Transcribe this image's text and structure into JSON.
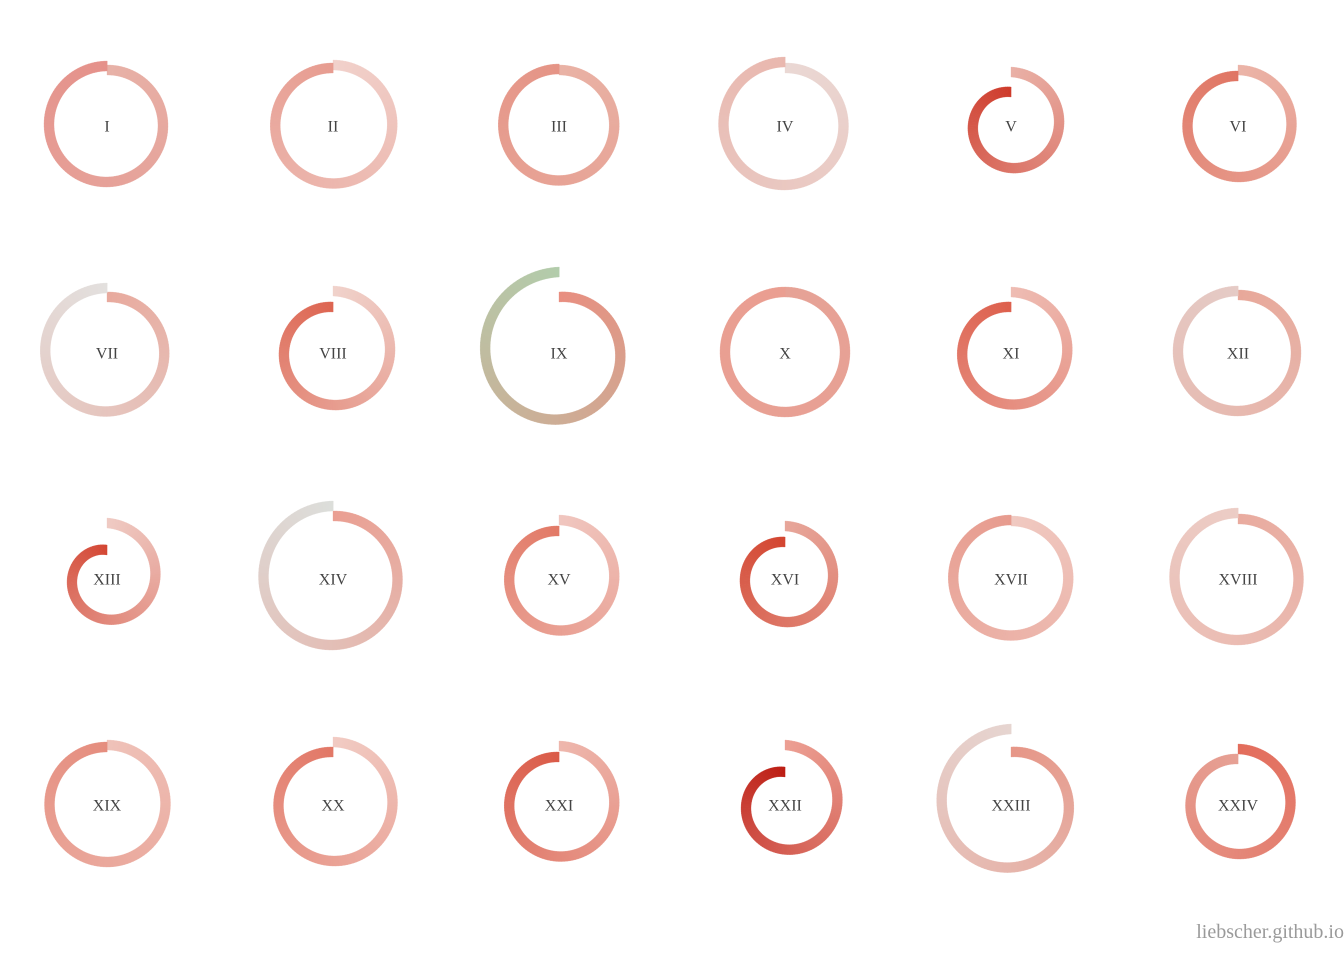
{
  "credit": "liebscher.github.io",
  "colors": {
    "label": "#444444",
    "credit": "#9a9a9a",
    "background": "#ffffff"
  },
  "chart_data": {
    "type": "radial-spiral",
    "grid": {
      "rows": 4,
      "columns": 6
    },
    "title": "",
    "cells": [
      {
        "label": "I",
        "start_radius": 55,
        "end_radius": 59,
        "start_color": "#e7b1a7",
        "end_color": "#e5918a"
      },
      {
        "label": "II",
        "start_radius": 60,
        "end_radius": 57,
        "start_color": "#f1d1cb",
        "end_color": "#e79c90"
      },
      {
        "label": "III",
        "start_radius": 55,
        "end_radius": 56,
        "start_color": "#e9b2a5",
        "end_color": "#e59486"
      },
      {
        "label": "IV",
        "start_radius": 57,
        "end_radius": 63,
        "start_color": "#ead8d4",
        "end_color": "#e9b7ae"
      },
      {
        "label": "V",
        "start_radius": 53,
        "end_radius": 33,
        "start_color": "#e9b0a6",
        "end_color": "#ce3a2a"
      },
      {
        "label": "VI",
        "start_radius": 55,
        "end_radius": 49,
        "start_color": "#ebb4a8",
        "end_color": "#e07563"
      },
      {
        "label": "VII",
        "start_radius": 55,
        "end_radius": 64,
        "start_color": "#e8aa9e",
        "end_color": "#e3e0de"
      },
      {
        "label": "VIII",
        "start_radius": 61,
        "end_radius": 45,
        "start_color": "#f0d2cb",
        "end_color": "#dd6450"
      },
      {
        "label": "IX",
        "start_radius": 55,
        "end_radius": 80,
        "start_color": "#e88e80",
        "end_color": "#b2ccab"
      },
      {
        "label": "X",
        "start_radius": 60,
        "end_radius": 60,
        "start_color": "#e6a296",
        "end_color": "#ea9e91"
      },
      {
        "label": "XI",
        "start_radius": 60,
        "end_radius": 45,
        "start_color": "#eebcb3",
        "end_color": "#dd5f4c"
      },
      {
        "label": "XII",
        "start_radius": 57,
        "end_radius": 61,
        "start_color": "#e8a89a",
        "end_color": "#e5cbc6"
      },
      {
        "label": "XIII",
        "start_radius": 55,
        "end_radius": 28,
        "start_color": "#efcac3",
        "end_color": "#d34532"
      },
      {
        "label": "XIV",
        "start_radius": 62,
        "end_radius": 72,
        "start_color": "#ea9f92",
        "end_color": "#dcdedb"
      },
      {
        "label": "XV",
        "start_radius": 58,
        "end_radius": 47,
        "start_color": "#f0c6bf",
        "end_color": "#e27966"
      },
      {
        "label": "XVI",
        "start_radius": 52,
        "end_radius": 36,
        "start_color": "#e7a69a",
        "end_color": "#d3442f"
      },
      {
        "label": "XVII",
        "start_radius": 57,
        "end_radius": 58,
        "start_color": "#f0c9c1",
        "end_color": "#e79b8e"
      },
      {
        "label": "XVIII",
        "start_radius": 59,
        "end_radius": 65,
        "start_color": "#e9ab9f",
        "end_color": "#eccdc6"
      },
      {
        "label": "XIX",
        "start_radius": 59,
        "end_radius": 57,
        "start_color": "#efc2b9",
        "end_color": "#e58d7e"
      },
      {
        "label": "XX",
        "start_radius": 62,
        "end_radius": 52,
        "start_color": "#f1cbc3",
        "end_color": "#e27766"
      },
      {
        "label": "XXI",
        "start_radius": 58,
        "end_radius": 47,
        "start_color": "#eeb7ad",
        "end_color": "#da5a47"
      },
      {
        "label": "XXII",
        "start_radius": 59,
        "end_radius": 32,
        "start_color": "#ec9f93",
        "end_color": "#bc1c12"
      },
      {
        "label": "XXIII",
        "start_radius": 52,
        "end_radius": 75,
        "start_color": "#e69687",
        "end_color": "#e6d5d1"
      },
      {
        "label": "XXIV",
        "start_radius": 55,
        "end_radius": 45,
        "start_color": "#e36d5c",
        "end_color": "#e6a195"
      }
    ]
  }
}
